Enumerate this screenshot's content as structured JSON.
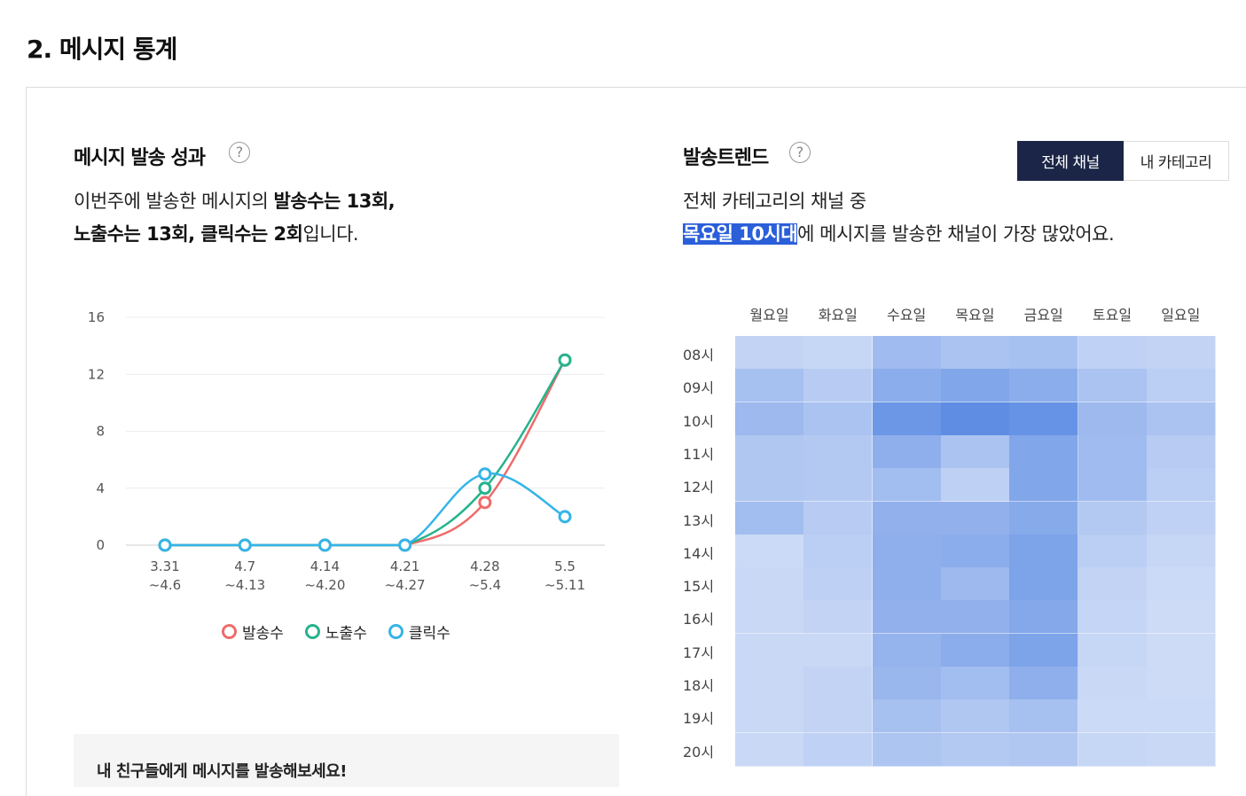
{
  "section": {
    "title": "2. 메시지 통계"
  },
  "performance": {
    "title": "메시지 발송 성과",
    "help_icon": "question-circle-icon",
    "desc": {
      "prefix": "이번주에 발송한 메시지의 ",
      "sent_bold": "발송수는 13회,",
      "impr_bold": "노출수는 13회, 클릭수는 2회",
      "suffix": "입니다."
    },
    "legend": [
      {
        "label": "발송수",
        "color": "#ef6b6b"
      },
      {
        "label": "노출수",
        "color": "#26b38d"
      },
      {
        "label": "클릭수",
        "color": "#36b4e8"
      }
    ]
  },
  "chart_data": {
    "type": "line",
    "categories": [
      "3.31\n~4.6",
      "4.7\n~4.13",
      "4.14\n~4.20",
      "4.21\n~4.27",
      "4.28\n~5.4",
      "5.5\n~5.11"
    ],
    "yticks": [
      0,
      4,
      8,
      12,
      16
    ],
    "ylim": [
      0,
      16
    ],
    "grid": true,
    "legend_position": "bottom",
    "series": [
      {
        "name": "발송수",
        "values": [
          0,
          0,
          0,
          0,
          3,
          13
        ],
        "color": "#ef6b6b"
      },
      {
        "name": "노출수",
        "values": [
          0,
          0,
          0,
          0,
          4,
          13
        ],
        "color": "#26b38d"
      },
      {
        "name": "클릭수",
        "values": [
          0,
          0,
          0,
          0,
          5,
          2
        ],
        "color": "#36b4e8"
      }
    ]
  },
  "trend": {
    "title": "발송트렌드",
    "help_icon": "question-circle-icon",
    "tabs": {
      "all": "전체 채널",
      "mine": "내 카테고리"
    },
    "desc": {
      "line1": "전체 카테고리의 채널 중",
      "highlight": "목요일 10시대",
      "suffix": "에 메시지를 발송한 채널이 가장 많았어요."
    },
    "days": [
      "월요일",
      "화요일",
      "수요일",
      "목요일",
      "금요일",
      "토요일",
      "일요일"
    ],
    "hours": [
      "08시",
      "09시",
      "10시",
      "11시",
      "12시",
      "13시",
      "14시",
      "15시",
      "16시",
      "17시",
      "18시",
      "19시",
      "20시"
    ],
    "intensity": [
      [
        0.25,
        0.22,
        0.5,
        0.42,
        0.45,
        0.27,
        0.25
      ],
      [
        0.45,
        0.32,
        0.65,
        0.72,
        0.65,
        0.42,
        0.3
      ],
      [
        0.52,
        0.42,
        0.88,
        0.98,
        0.92,
        0.52,
        0.42
      ],
      [
        0.38,
        0.35,
        0.62,
        0.42,
        0.72,
        0.5,
        0.32
      ],
      [
        0.38,
        0.35,
        0.48,
        0.28,
        0.72,
        0.5,
        0.3
      ],
      [
        0.48,
        0.32,
        0.6,
        0.6,
        0.68,
        0.35,
        0.27
      ],
      [
        0.18,
        0.3,
        0.62,
        0.65,
        0.75,
        0.3,
        0.22
      ],
      [
        0.2,
        0.28,
        0.62,
        0.52,
        0.75,
        0.25,
        0.18
      ],
      [
        0.2,
        0.25,
        0.6,
        0.6,
        0.7,
        0.23,
        0.17
      ],
      [
        0.2,
        0.2,
        0.58,
        0.65,
        0.75,
        0.22,
        0.17
      ],
      [
        0.2,
        0.25,
        0.55,
        0.48,
        0.62,
        0.2,
        0.17
      ],
      [
        0.2,
        0.25,
        0.45,
        0.38,
        0.45,
        0.18,
        0.18
      ],
      [
        0.2,
        0.27,
        0.4,
        0.35,
        0.38,
        0.22,
        0.2
      ]
    ],
    "color_low": "#e4ebfa",
    "color_high": "#5b8be3"
  },
  "promo": {
    "text": "내 친구들에게 메시지를 발송해보세요!"
  }
}
